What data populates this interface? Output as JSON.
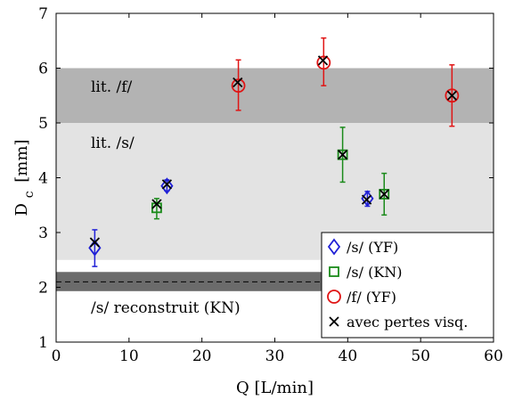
{
  "chart_data": {
    "type": "scatter",
    "xlabel": "Q [L/min]",
    "ylabel": "D",
    "ylabel_sub": "c",
    "ylabel_unit": "[mm]",
    "xlim": [
      0,
      60
    ],
    "ylim": [
      1,
      7
    ],
    "xticks": [
      0,
      10,
      20,
      30,
      40,
      50,
      60
    ],
    "yticks": [
      1,
      2,
      3,
      4,
      5,
      6,
      7
    ],
    "grid": false,
    "bands": [
      {
        "label": "lit. /f/",
        "y0": 5.0,
        "y1": 6.0,
        "color": "#b3b3b3"
      },
      {
        "label": "lit. /s/",
        "y0": 2.5,
        "y1": 5.0,
        "color": "#e3e3e3"
      },
      {
        "label": "/s/ reconstruit (KN)",
        "y0": 1.93,
        "y1": 2.28,
        "color": "#6b6b6b",
        "mid": 2.1
      }
    ],
    "series": [
      {
        "name": "/s/ (YF)",
        "marker": "diamond",
        "color": "#1f1fd6",
        "points": [
          {
            "x": 5.3,
            "y": 2.72,
            "lo": 2.38,
            "hi": 3.05
          },
          {
            "x": 15.2,
            "y": 3.85,
            "lo": 3.76,
            "hi": 3.96
          },
          {
            "x": 42.7,
            "y": 3.62,
            "lo": 3.48,
            "hi": 3.75
          }
        ]
      },
      {
        "name": "/s/ (KN)",
        "marker": "square",
        "color": "#1a8a1a",
        "points": [
          {
            "x": 13.8,
            "y": 3.45,
            "lo": 3.25,
            "hi": 3.62
          },
          {
            "x": 39.3,
            "y": 4.42,
            "lo": 3.92,
            "hi": 4.92
          },
          {
            "x": 45.0,
            "y": 3.7,
            "lo": 3.32,
            "hi": 4.08
          }
        ]
      },
      {
        "name": "/f/ (YF)",
        "marker": "circle",
        "color": "#e01414",
        "points": [
          {
            "x": 25.0,
            "y": 5.68,
            "lo": 5.23,
            "hi": 6.15
          },
          {
            "x": 36.7,
            "y": 6.1,
            "lo": 5.68,
            "hi": 6.55
          },
          {
            "x": 54.3,
            "y": 5.5,
            "lo": 4.94,
            "hi": 6.06
          }
        ]
      },
      {
        "name": "avec pertes visq.",
        "marker": "x",
        "color": "#000000",
        "points": [
          {
            "x": 5.3,
            "y": 2.82
          },
          {
            "x": 15.2,
            "y": 3.88
          },
          {
            "x": 13.8,
            "y": 3.52
          },
          {
            "x": 24.9,
            "y": 5.74
          },
          {
            "x": 36.6,
            "y": 6.14
          },
          {
            "x": 39.3,
            "y": 4.42
          },
          {
            "x": 42.6,
            "y": 3.6
          },
          {
            "x": 45.0,
            "y": 3.7
          },
          {
            "x": 54.3,
            "y": 5.5
          }
        ]
      }
    ],
    "legend": {
      "position": "bottom-right",
      "entries": [
        "/s/ (YF)",
        "/s/ (KN)",
        "/f/ (YF)",
        "avec pertes visq."
      ]
    }
  }
}
